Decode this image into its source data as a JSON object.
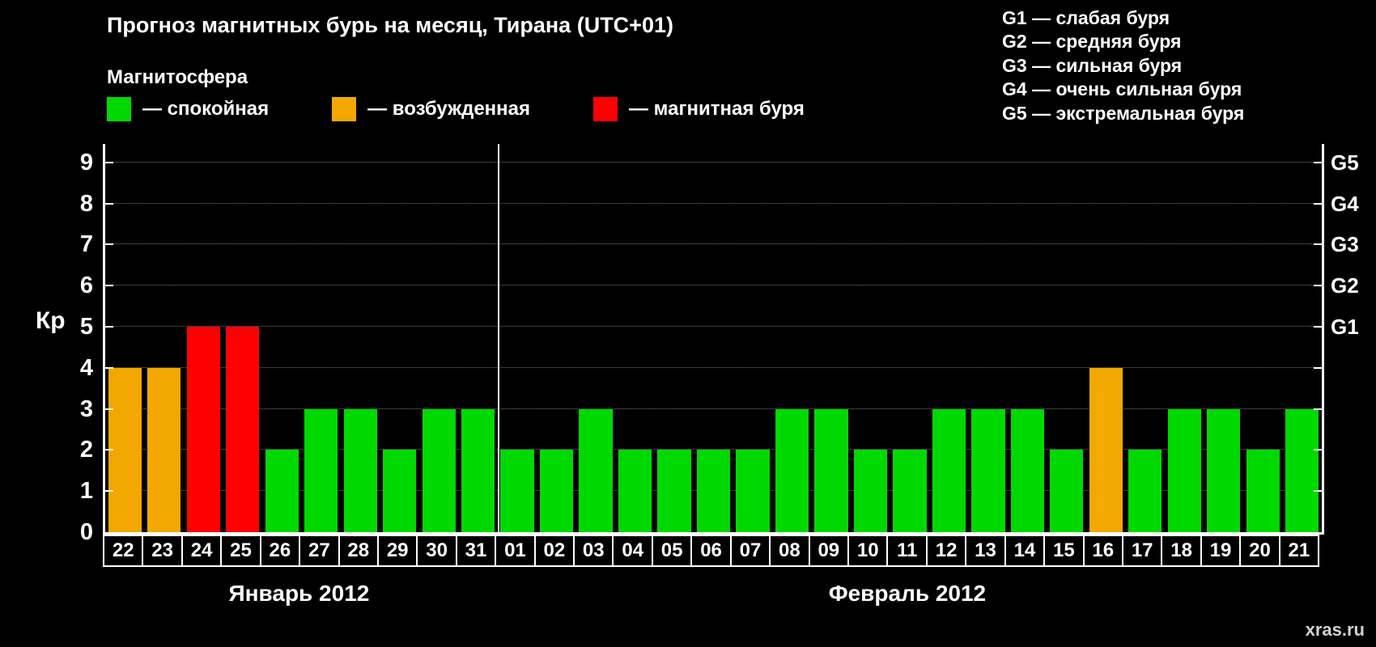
{
  "header": {
    "title": "Прогноз магнитных бурь на месяц, Тирана (UTC+01)",
    "subtitle": "Магнитосфера"
  },
  "legend": {
    "items": [
      {
        "key": "quiet",
        "label": "— спокойная",
        "color": "#00d900"
      },
      {
        "key": "excited",
        "label": "— возбужденная",
        "color": "#f2a800"
      },
      {
        "key": "storm",
        "label": "— магнитная буря",
        "color": "#ff0000"
      }
    ]
  },
  "storm_scale": {
    "items": [
      {
        "label": "G1 — слабая буря"
      },
      {
        "label": "G2 — средняя буря"
      },
      {
        "label": "G3 — сильная буря"
      },
      {
        "label": "G4 — очень сильная буря"
      },
      {
        "label": "G5 — экстремальная буря"
      }
    ]
  },
  "chart_data": {
    "type": "bar",
    "title": "Прогноз магнитных бурь на месяц, Тирана (UTC+01)",
    "ylabel": "Кр",
    "ylim": [
      0,
      9
    ],
    "yticks": [
      0,
      1,
      2,
      3,
      4,
      5,
      6,
      7,
      8,
      9
    ],
    "grid": "horizontal-dotted",
    "legend_position": "top-left",
    "right_axis": [
      {
        "label": "G1",
        "kp": 5
      },
      {
        "label": "G2",
        "kp": 6
      },
      {
        "label": "G3",
        "kp": 7
      },
      {
        "label": "G4",
        "kp": 8
      },
      {
        "label": "G5",
        "kp": 9
      }
    ],
    "months": [
      {
        "label": "Январь 2012",
        "days": 10
      },
      {
        "label": "Февраль 2012",
        "days": 21
      }
    ],
    "categories": [
      "22",
      "23",
      "24",
      "25",
      "26",
      "27",
      "28",
      "29",
      "30",
      "31",
      "01",
      "02",
      "03",
      "04",
      "05",
      "06",
      "07",
      "08",
      "09",
      "10",
      "11",
      "12",
      "13",
      "14",
      "15",
      "16",
      "17",
      "18",
      "19",
      "20",
      "21"
    ],
    "values": [
      4,
      4,
      5,
      5,
      2,
      3,
      3,
      2,
      3,
      3,
      2,
      2,
      3,
      2,
      2,
      2,
      2,
      3,
      3,
      2,
      2,
      3,
      3,
      3,
      2,
      4,
      2,
      3,
      3,
      2,
      3
    ],
    "bar_states": [
      "excited",
      "excited",
      "storm",
      "storm",
      "quiet",
      "quiet",
      "quiet",
      "quiet",
      "quiet",
      "quiet",
      "quiet",
      "quiet",
      "quiet",
      "quiet",
      "quiet",
      "quiet",
      "quiet",
      "quiet",
      "quiet",
      "quiet",
      "quiet",
      "quiet",
      "quiet",
      "quiet",
      "quiet",
      "excited",
      "quiet",
      "quiet",
      "quiet",
      "quiet",
      "quiet"
    ],
    "colors": {
      "quiet": "#00d900",
      "excited": "#f2a800",
      "storm": "#ff0000"
    }
  },
  "watermark": "xras.ru"
}
